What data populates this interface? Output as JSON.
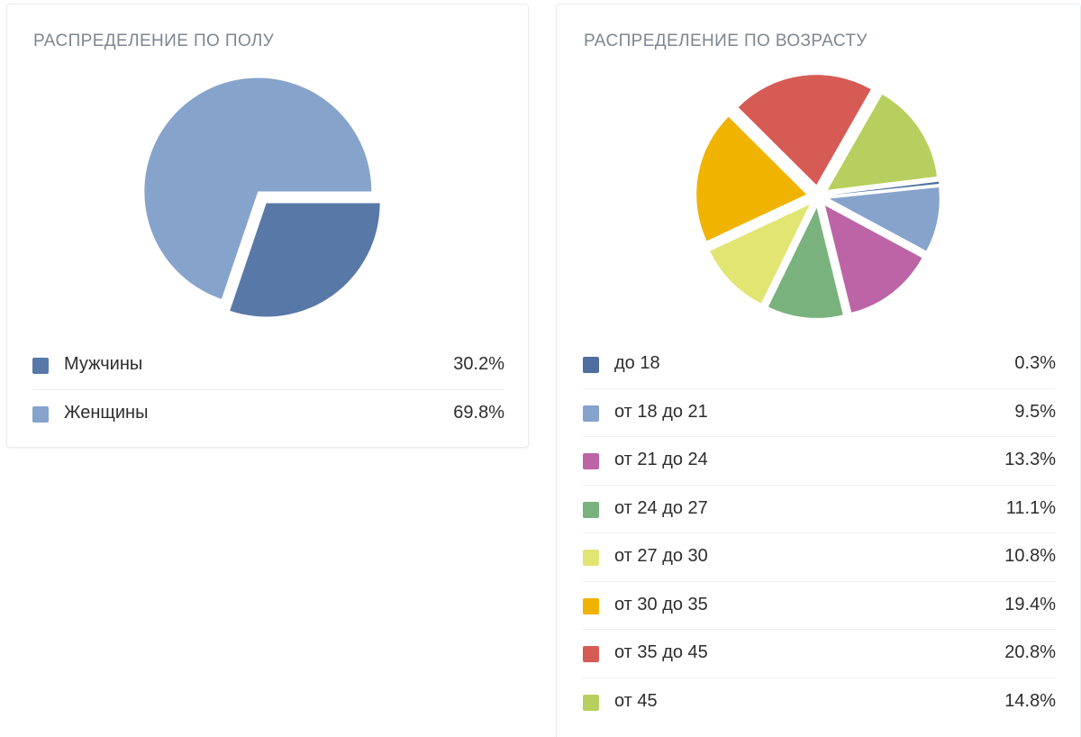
{
  "chart_data": [
    {
      "type": "pie",
      "title": "РАСПРЕДЕЛЕНИЕ ПО ПОЛУ",
      "legend_position": "bottom",
      "series": [
        {
          "label": "Мужчины",
          "value": 30.2,
          "display": "30.2%",
          "color": "#5878a8"
        },
        {
          "label": "Женщины",
          "value": 69.8,
          "display": "69.8%",
          "color": "#86a3cb"
        }
      ]
    },
    {
      "type": "pie",
      "title": "РАСПРЕДЕЛЕНИЕ ПО ВОЗРАСТУ",
      "legend_position": "bottom",
      "series": [
        {
          "label": "до 18",
          "value": 0.3,
          "display": "0.3%",
          "color": "#4f6fa0"
        },
        {
          "label": "от 18 до 21",
          "value": 9.5,
          "display": "9.5%",
          "color": "#86a3cb"
        },
        {
          "label": "от 21 до 24",
          "value": 13.3,
          "display": "13.3%",
          "color": "#bd64a6"
        },
        {
          "label": "от 24 до 27",
          "value": 11.1,
          "display": "11.1%",
          "color": "#79b27d"
        },
        {
          "label": "от 27 до 30",
          "value": 10.8,
          "display": "10.8%",
          "color": "#e1e572"
        },
        {
          "label": "от 30 до 35",
          "value": 19.4,
          "display": "19.4%",
          "color": "#efb300"
        },
        {
          "label": "от 35 до 45",
          "value": 20.8,
          "display": "20.8%",
          "color": "#d65b55"
        },
        {
          "label": "от 45",
          "value": 14.8,
          "display": "14.8%",
          "color": "#b7cf5e"
        }
      ]
    }
  ]
}
